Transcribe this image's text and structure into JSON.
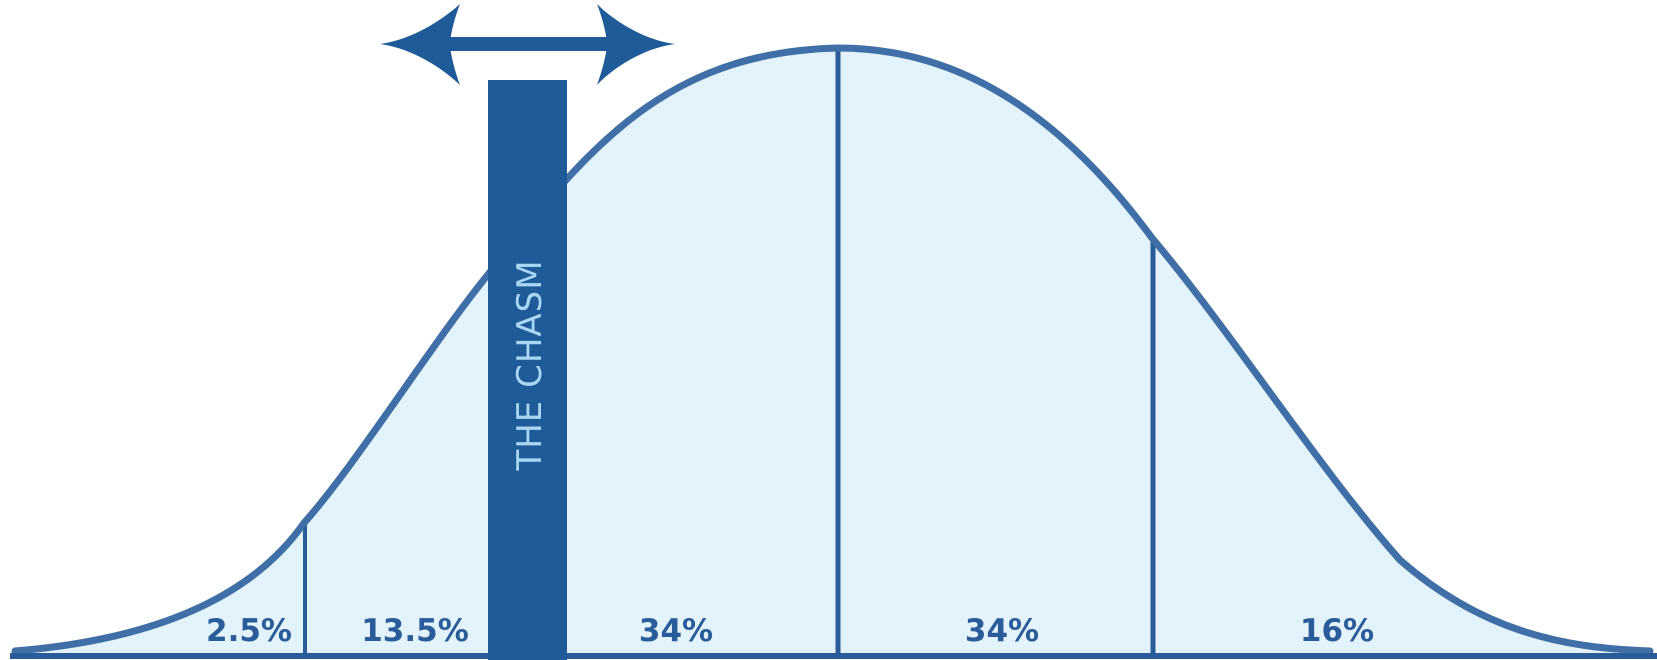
{
  "segments": [
    {
      "label": "2.5%"
    },
    {
      "label": "13.5%"
    },
    {
      "label": "34%"
    },
    {
      "label": "34%"
    },
    {
      "label": "16%"
    }
  ],
  "chasm": {
    "label": "THE CHASM"
  },
  "colors": {
    "curve": "#3f6fa6",
    "fill": "#e2f3fb",
    "divider": "#2a5c99",
    "chasm_bar": "#1e5b98",
    "chasm_text": "#a9d6f2",
    "arrow": "#1e5b98",
    "label": "#2a5c99"
  }
}
